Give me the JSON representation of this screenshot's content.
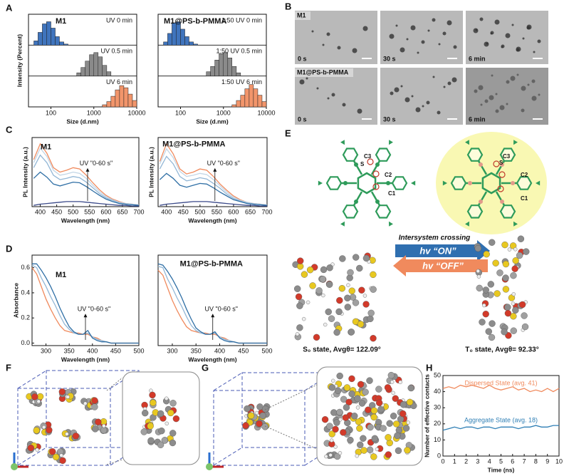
{
  "panel_labels": [
    "A",
    "B",
    "C",
    "D",
    "E",
    "F",
    "G",
    "H"
  ],
  "micrographs": {
    "rows": [
      "M1",
      "M1@PS-b-PMMA"
    ],
    "times": [
      "0 s",
      "30 s",
      "6 min"
    ]
  },
  "scheme": {
    "atoms": [
      "C3",
      "S",
      "C2",
      "C1"
    ],
    "process": "Intersystem crossing",
    "on": "hv “ON”",
    "off": "hv “OFF”",
    "states": [
      "S₀ state, Avgθ= 122.09°",
      "T₀ state, Avgθ= 92.33°"
    ]
  },
  "chart_data": [
    {
      "type": "histogram",
      "title": "M1",
      "xlabel": "Size (d.nm)",
      "ylabel": "Intensity (Percent)",
      "log_x": true,
      "xlim": [
        30,
        10000
      ],
      "xticks": [
        100,
        1000,
        10000
      ],
      "ylim": [
        0,
        25
      ],
      "rows": [
        {
          "label": "UV 0 min",
          "color": "#3f74bd",
          "bins": [
            40,
            50,
            63,
            79,
            100,
            126,
            158,
            200,
            251
          ],
          "counts": [
            4,
            12,
            20,
            22,
            16,
            8,
            3,
            1
          ]
        },
        {
          "label": "UV 0.5 min",
          "color": "#8a8a8a",
          "bins": [
            400,
            500,
            630,
            790,
            1000,
            1260,
            1580,
            2000,
            2510
          ],
          "counts": [
            3,
            8,
            14,
            20,
            22,
            18,
            10,
            4
          ]
        },
        {
          "label": "UV 6 min",
          "color": "#f2956b",
          "bins": [
            1580,
            2000,
            2510,
            3160,
            3980,
            5010,
            6310,
            7940,
            10000
          ],
          "counts": [
            2,
            5,
            10,
            16,
            20,
            18,
            12,
            6
          ]
        }
      ]
    },
    {
      "type": "histogram",
      "title": "M1@PS-b-PMMA",
      "xlabel": "Size (d.nm)",
      "log_x": true,
      "xlim": [
        30,
        10000
      ],
      "xticks": [
        100,
        1000,
        10000
      ],
      "ylim": [
        0,
        25
      ],
      "rows": [
        {
          "label": "1:50 UV 0 min",
          "color": "#3f74bd",
          "bins": [
            40,
            50,
            63,
            79,
            100,
            126,
            158,
            200,
            251
          ],
          "counts": [
            3,
            11,
            21,
            22,
            15,
            8,
            3,
            1
          ]
        },
        {
          "label": "1:50 UV 0.5 min",
          "color": "#8a8a8a",
          "bins": [
            400,
            500,
            630,
            790,
            1000,
            1260,
            1580,
            2000,
            2510
          ],
          "counts": [
            4,
            9,
            15,
            21,
            22,
            17,
            9,
            3
          ]
        },
        {
          "label": "1:50 UV 6 min",
          "color": "#f2956b",
          "bins": [
            1580,
            2000,
            2510,
            3160,
            3980,
            5010,
            6310,
            7940,
            10000
          ],
          "counts": [
            2,
            6,
            11,
            17,
            21,
            17,
            11,
            5
          ]
        }
      ]
    },
    {
      "type": "line",
      "title": "M1",
      "xlabel": "Wavelength (nm)",
      "ylabel": "PL Intensity (a.u.)",
      "annotation": "UV \"0-60 s\"",
      "xlim": [
        375,
        700
      ],
      "xticks": [
        400,
        450,
        500,
        550,
        600,
        650,
        700
      ],
      "ylim": [
        0,
        1.1
      ],
      "x": [
        380,
        400,
        420,
        440,
        460,
        480,
        500,
        520,
        540,
        560,
        580,
        600,
        620,
        640,
        660,
        680,
        700
      ],
      "series": [
        {
          "color": "#f08a5d",
          "values": [
            0.75,
            1.0,
            0.85,
            0.62,
            0.55,
            0.58,
            0.62,
            0.6,
            0.5,
            0.38,
            0.27,
            0.18,
            0.12,
            0.08,
            0.05,
            0.04,
            0.03
          ]
        },
        {
          "color": "#c3d6e6",
          "values": [
            0.7,
            0.93,
            0.8,
            0.58,
            0.5,
            0.52,
            0.55,
            0.53,
            0.45,
            0.34,
            0.24,
            0.16,
            0.11,
            0.07,
            0.05,
            0.04,
            0.03
          ]
        },
        {
          "color": "#93b7d6",
          "values": [
            0.62,
            0.82,
            0.7,
            0.5,
            0.43,
            0.45,
            0.48,
            0.46,
            0.39,
            0.3,
            0.21,
            0.14,
            0.1,
            0.06,
            0.04,
            0.03,
            0.02
          ]
        },
        {
          "color": "#2f6fa5",
          "values": [
            0.45,
            0.55,
            0.47,
            0.36,
            0.33,
            0.36,
            0.39,
            0.38,
            0.32,
            0.25,
            0.18,
            0.12,
            0.08,
            0.05,
            0.04,
            0.03,
            0.02
          ]
        },
        {
          "color": "#3b4a8a",
          "values": [
            0.02,
            0.04,
            0.05,
            0.06,
            0.07,
            0.08,
            0.08,
            0.08,
            0.07,
            0.06,
            0.05,
            0.04,
            0.03,
            0.02,
            0.02,
            0.01,
            0.01
          ]
        }
      ]
    },
    {
      "type": "line",
      "title": "M1@PS-b-PMMA",
      "xlabel": "Wavelength (nm)",
      "ylabel": "PL Intensity (a.u.)",
      "annotation": "UV \"0-60 s\"",
      "xlim": [
        375,
        700
      ],
      "xticks": [
        400,
        450,
        500,
        550,
        600,
        650,
        700
      ],
      "ylim": [
        0,
        1.1
      ],
      "x": [
        380,
        400,
        420,
        440,
        460,
        480,
        500,
        520,
        540,
        560,
        580,
        600,
        620,
        640,
        660,
        680,
        700
      ],
      "series": [
        {
          "color": "#f08a5d",
          "values": [
            0.72,
            1.0,
            0.84,
            0.6,
            0.52,
            0.55,
            0.6,
            0.58,
            0.48,
            0.36,
            0.26,
            0.17,
            0.11,
            0.07,
            0.05,
            0.04,
            0.03
          ]
        },
        {
          "color": "#c3d6e6",
          "values": [
            0.68,
            0.92,
            0.78,
            0.56,
            0.48,
            0.5,
            0.53,
            0.51,
            0.43,
            0.33,
            0.23,
            0.15,
            0.1,
            0.07,
            0.05,
            0.04,
            0.03
          ]
        },
        {
          "color": "#93b7d6",
          "values": [
            0.6,
            0.8,
            0.68,
            0.48,
            0.41,
            0.43,
            0.46,
            0.44,
            0.37,
            0.29,
            0.2,
            0.13,
            0.09,
            0.06,
            0.04,
            0.03,
            0.02
          ]
        },
        {
          "color": "#2f6fa5",
          "values": [
            0.43,
            0.53,
            0.45,
            0.34,
            0.31,
            0.34,
            0.37,
            0.36,
            0.3,
            0.23,
            0.17,
            0.11,
            0.08,
            0.05,
            0.04,
            0.03,
            0.02
          ]
        },
        {
          "color": "#3b4a8a",
          "values": [
            0.02,
            0.04,
            0.05,
            0.06,
            0.07,
            0.08,
            0.08,
            0.08,
            0.07,
            0.06,
            0.05,
            0.04,
            0.03,
            0.02,
            0.02,
            0.01,
            0.01
          ]
        }
      ]
    },
    {
      "type": "line",
      "title": "M1",
      "xlabel": "Wavelength (nm)",
      "ylabel": "Absorbance",
      "annotation": "UV \"0-60 s\"",
      "xlim": [
        270,
        500
      ],
      "xticks": [
        300,
        350,
        400,
        450,
        500
      ],
      "ylim": [
        -0.02,
        0.7
      ],
      "yticks": [
        {
          "value": 0,
          "label": "0.0"
        },
        0.2,
        0.4,
        0.6
      ],
      "x": [
        270,
        280,
        290,
        300,
        310,
        320,
        330,
        340,
        350,
        360,
        370,
        380,
        390,
        400,
        410,
        420,
        430,
        440,
        450,
        460,
        470,
        480,
        490,
        500
      ],
      "series": [
        {
          "color": "#f08a5d",
          "values": [
            0.6,
            0.55,
            0.45,
            0.35,
            0.27,
            0.2,
            0.14,
            0.1,
            0.09,
            0.08,
            0.08,
            0.07,
            0.07,
            0.05,
            0.04,
            0.02,
            0.01,
            0,
            0,
            0,
            0,
            0,
            0,
            0
          ]
        },
        {
          "color": "#93b7d6",
          "values": [
            0.62,
            0.6,
            0.52,
            0.45,
            0.37,
            0.3,
            0.22,
            0.15,
            0.11,
            0.08,
            0.07,
            0.07,
            0.08,
            0.05,
            0.03,
            0.02,
            0.01,
            0,
            0,
            0,
            0,
            0,
            0,
            0
          ]
        },
        {
          "color": "#2f6fa5",
          "values": [
            0.63,
            0.63,
            0.58,
            0.52,
            0.45,
            0.37,
            0.28,
            0.2,
            0.13,
            0.09,
            0.07,
            0.07,
            0.1,
            0.04,
            0.02,
            0.01,
            0.01,
            0,
            0,
            0,
            0,
            0,
            0,
            0
          ]
        }
      ]
    },
    {
      "type": "line",
      "title": "M1@PS-b-PMMA",
      "xlabel": "Wavelength (nm)",
      "annotation": "UV \"0-60 s\"",
      "xlim": [
        270,
        500
      ],
      "xticks": [
        300,
        350,
        400,
        450,
        500
      ],
      "ylim": [
        -0.02,
        0.7
      ],
      "x": [
        270,
        280,
        290,
        300,
        310,
        320,
        330,
        340,
        350,
        360,
        370,
        380,
        390,
        400,
        410,
        420,
        430,
        440,
        450,
        460,
        470,
        480,
        490,
        500
      ],
      "series": [
        {
          "color": "#f08a5d",
          "values": [
            0.58,
            0.54,
            0.44,
            0.34,
            0.26,
            0.19,
            0.13,
            0.1,
            0.09,
            0.08,
            0.08,
            0.07,
            0.07,
            0.05,
            0.04,
            0.02,
            0.01,
            0,
            0,
            0,
            0,
            0,
            0,
            0
          ]
        },
        {
          "color": "#93b7d6",
          "values": [
            0.61,
            0.6,
            0.51,
            0.44,
            0.36,
            0.29,
            0.21,
            0.14,
            0.1,
            0.08,
            0.07,
            0.07,
            0.08,
            0.05,
            0.03,
            0.02,
            0.01,
            0,
            0,
            0,
            0,
            0,
            0,
            0
          ]
        },
        {
          "color": "#2f6fa5",
          "values": [
            0.63,
            0.62,
            0.57,
            0.51,
            0.44,
            0.36,
            0.27,
            0.19,
            0.12,
            0.09,
            0.07,
            0.07,
            0.09,
            0.04,
            0.02,
            0.01,
            0.01,
            0,
            0,
            0,
            0,
            0,
            0,
            0
          ]
        }
      ]
    },
    {
      "type": "line",
      "xlabel": "Time (ns)",
      "ylabel": "Number of effective contacts",
      "xlim": [
        0,
        10
      ],
      "xticks": [
        0,
        1,
        2,
        3,
        4,
        5,
        6,
        7,
        8,
        9,
        10
      ],
      "ylim": [
        0,
        50
      ],
      "yticks": [
        0,
        10,
        20,
        30,
        40,
        50
      ],
      "x": [
        0,
        0.5,
        1,
        1.5,
        2,
        2.5,
        3,
        3.5,
        4,
        4.5,
        5,
        5.5,
        6,
        6.5,
        7,
        7.5,
        8,
        8.5,
        9,
        9.5,
        10
      ],
      "series": [
        {
          "name": "Dispersed State (avg. 41)",
          "color": "#f08a5d",
          "values": [
            42,
            43,
            42,
            44,
            43,
            44,
            43,
            42,
            44,
            42,
            41,
            42,
            43,
            41,
            42,
            40,
            41,
            40,
            42,
            40,
            42
          ]
        },
        {
          "name": "Aggregate State (avg. 18)",
          "color": "#2f7fb5",
          "values": [
            16,
            17,
            18,
            17,
            18,
            18,
            17,
            18,
            18,
            17,
            18,
            18,
            18,
            17,
            18,
            18,
            19,
            18,
            18,
            19,
            19
          ]
        }
      ]
    }
  ]
}
